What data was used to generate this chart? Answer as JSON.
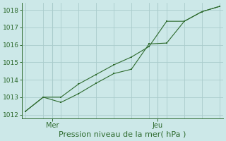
{
  "line1_x": [
    0,
    1,
    2,
    3,
    4,
    5,
    6,
    7,
    8,
    9,
    10,
    11
  ],
  "line1_y": [
    1012.2,
    1013.0,
    1012.7,
    1013.2,
    1013.8,
    1014.35,
    1014.6,
    1016.05,
    1016.1,
    1017.35,
    1017.9,
    1018.2
  ],
  "line2_x": [
    0,
    1,
    2,
    3,
    4,
    5,
    6,
    7,
    8,
    9,
    10,
    11
  ],
  "line2_y": [
    1012.2,
    1013.0,
    1013.0,
    1013.75,
    1014.3,
    1014.85,
    1015.3,
    1015.9,
    1017.35,
    1017.35,
    1017.9,
    1018.2
  ],
  "line_color": "#2d6a2d",
  "bg_color": "#cce8e8",
  "grid_color": "#aacccc",
  "axis_color": "#2d6a2d",
  "ylim": [
    1011.8,
    1018.4
  ],
  "yticks": [
    1012,
    1013,
    1014,
    1015,
    1016,
    1017,
    1018
  ],
  "xlim": [
    -0.2,
    11.2
  ],
  "mer_x": 1.5,
  "jeu_x": 7.5,
  "xlabel": "Pression niveau de la mer( hPa )",
  "xlabel_fontsize": 8,
  "tick_fontsize": 6.5,
  "day_label_fontsize": 7
}
